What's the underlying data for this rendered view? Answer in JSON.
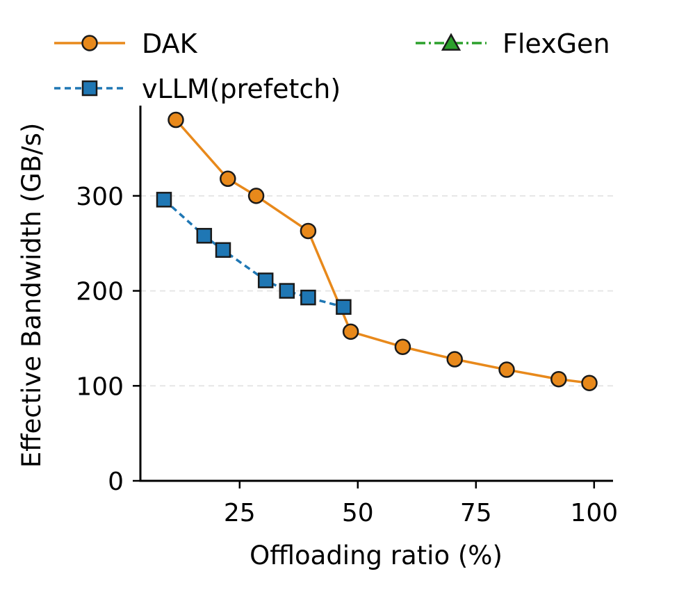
{
  "chart_data": {
    "type": "line",
    "title": "",
    "xlabel": "Offloading ratio (%)",
    "ylabel": "Effective Bandwidth (GB/s)",
    "xlim": [
      4,
      104
    ],
    "ylim": [
      0,
      395
    ],
    "xticks": [
      25,
      50,
      75,
      100
    ],
    "yticks": [
      0,
      100,
      200,
      300
    ],
    "grid": "horizontal dashed",
    "legend_placement": "top",
    "series": [
      {
        "name": "DAK",
        "color": "#e8891b",
        "marker": "circle",
        "linestyle": "solid",
        "x": [
          11.5,
          22.5,
          28.5,
          39.5,
          48.5,
          59.5,
          70.5,
          81.5,
          92.5,
          99
        ],
        "y": [
          380,
          318,
          300,
          263,
          157,
          141,
          128,
          117,
          107,
          103
        ]
      },
      {
        "name": "vLLM(prefetch)",
        "color": "#1f77b4",
        "marker": "square",
        "linestyle": "dashed",
        "x": [
          9,
          17.5,
          21.5,
          30.5,
          35,
          39.5,
          47
        ],
        "y": [
          296,
          258,
          243,
          211,
          200,
          193,
          183
        ]
      },
      {
        "name": "FlexGen",
        "color": "#2ca02c",
        "marker": "triangle",
        "linestyle": "dashdot",
        "x": [],
        "y": []
      }
    ]
  }
}
